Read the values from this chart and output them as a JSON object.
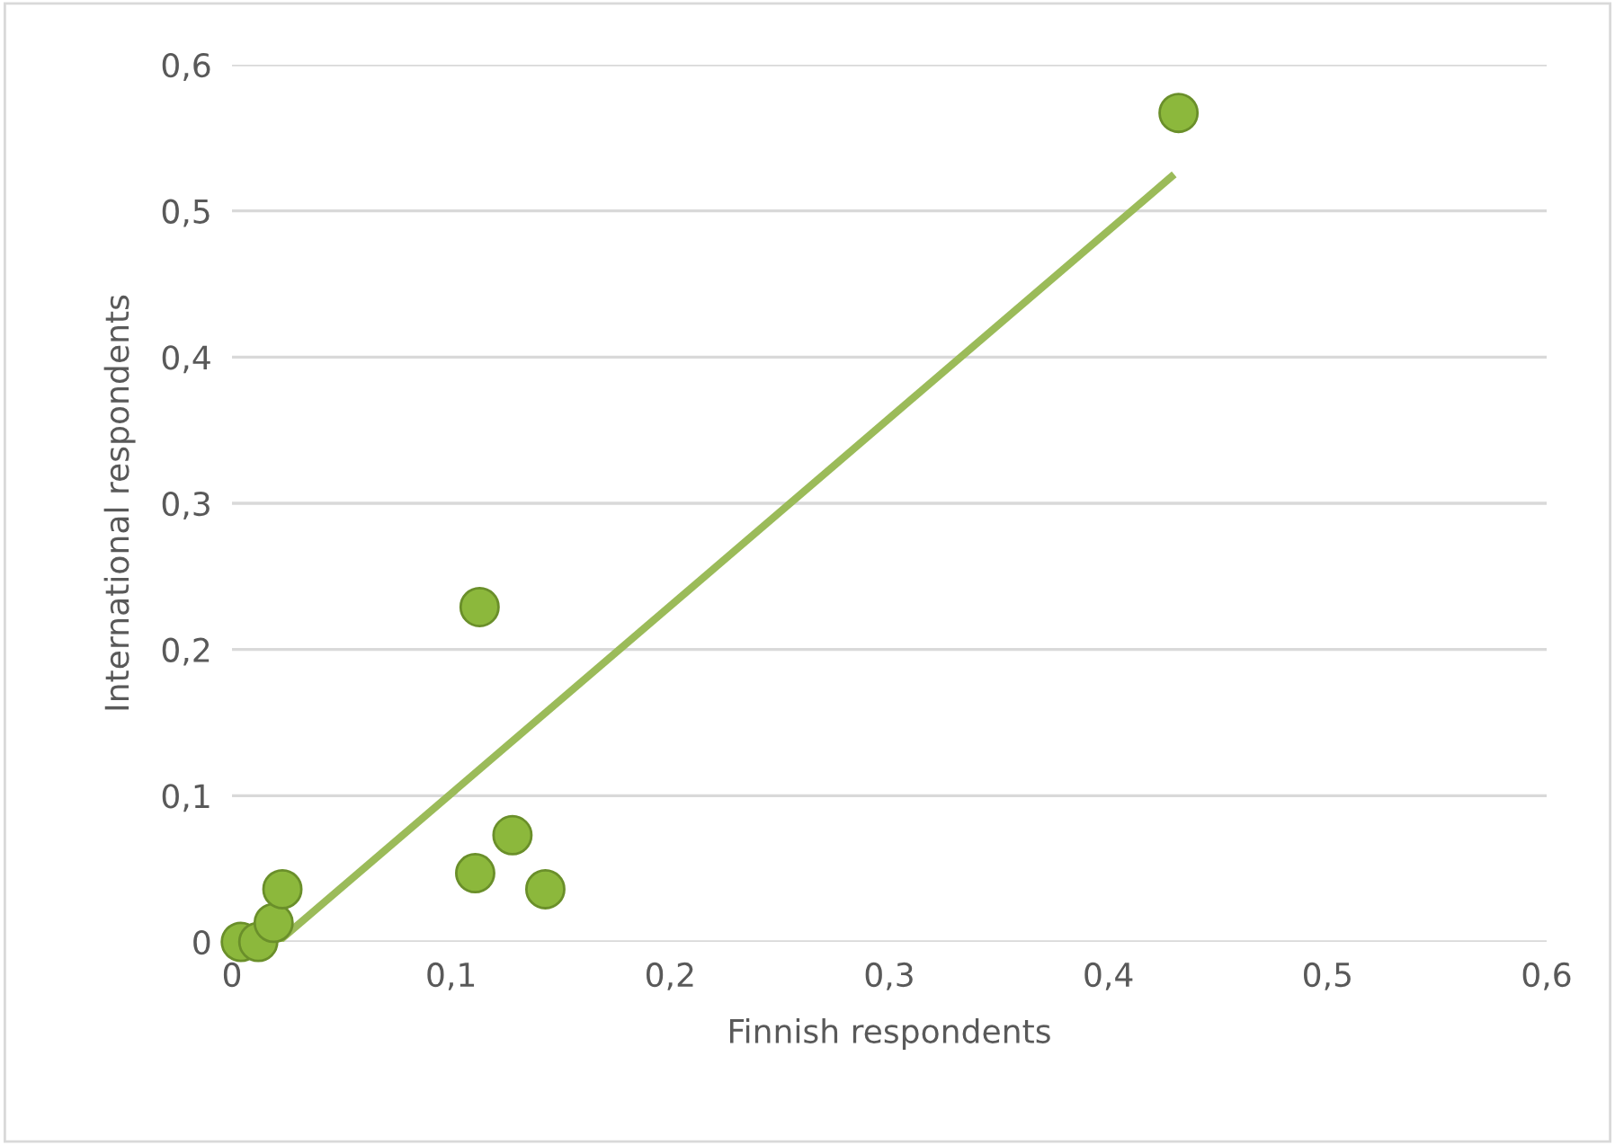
{
  "chart_data": {
    "type": "scatter",
    "xlabel": "Finnish respondents",
    "ylabel": "International respondents",
    "xlim": [
      0,
      0.6
    ],
    "ylim": [
      0,
      0.6
    ],
    "xticks": [
      {
        "value": 0,
        "label": "0"
      },
      {
        "value": 0.1,
        "label": "0,1"
      },
      {
        "value": 0.2,
        "label": "0,2"
      },
      {
        "value": 0.3,
        "label": "0,3"
      },
      {
        "value": 0.4,
        "label": "0,4"
      },
      {
        "value": 0.5,
        "label": "0,5"
      },
      {
        "value": 0.6,
        "label": "0,6"
      }
    ],
    "yticks": [
      {
        "value": 0,
        "label": "0"
      },
      {
        "value": 0.1,
        "label": "0,1"
      },
      {
        "value": 0.2,
        "label": "0,2"
      },
      {
        "value": 0.3,
        "label": "0,3"
      },
      {
        "value": 0.4,
        "label": "0,4"
      },
      {
        "value": 0.5,
        "label": "0,5"
      },
      {
        "value": 0.6,
        "label": "0,6"
      }
    ],
    "grid": "y",
    "series": [
      {
        "marker": "circle",
        "color": "#8cb83c",
        "x": [
          0.004,
          0.012,
          0.019,
          0.023,
          0.111,
          0.128,
          0.143,
          0.113,
          0.432
        ],
        "values": [
          0,
          0,
          0.013,
          0.036,
          0.047,
          0.073,
          0.036,
          0.229,
          0.567
        ]
      },
      {
        "type": "line",
        "color": "#9bbb59",
        "x": [
          0.021,
          0.43
        ],
        "values": [
          0,
          0.525
        ]
      }
    ]
  }
}
